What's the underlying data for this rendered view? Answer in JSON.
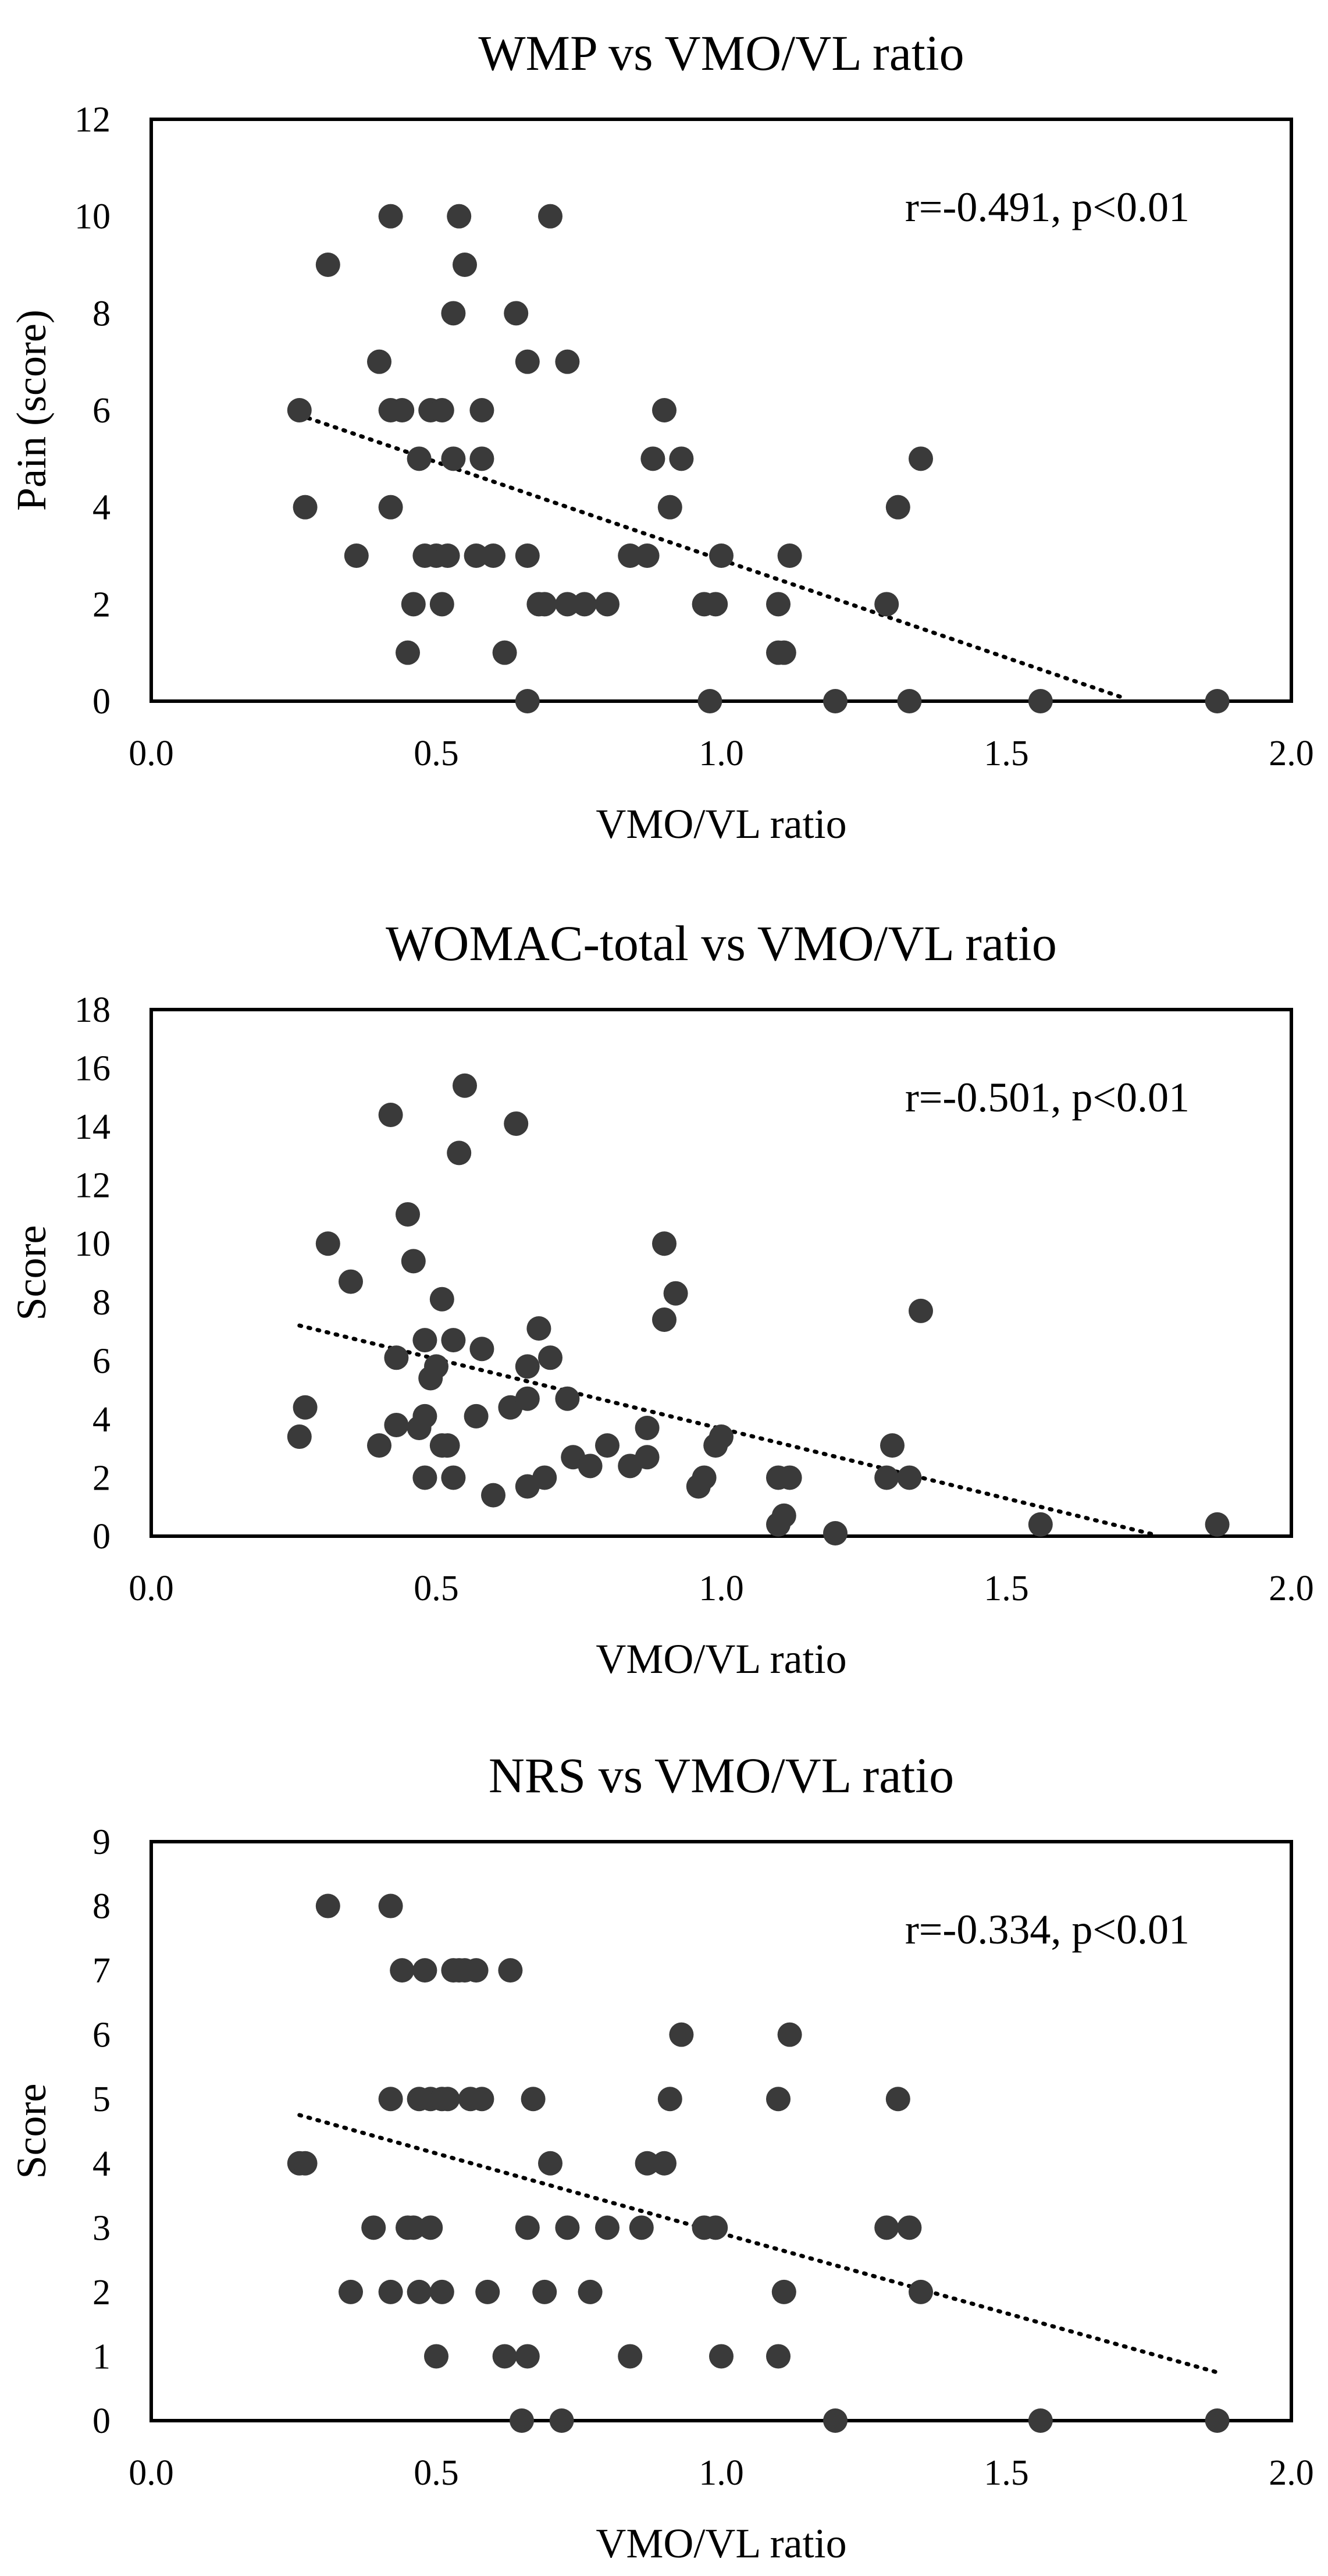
{
  "chart_data": [
    {
      "type": "scatter",
      "title": "WMP vs VMO/VL ratio",
      "xlabel": "VMO/VL ratio",
      "ylabel": "Pain (score)",
      "xlim": [
        0,
        2
      ],
      "ylim": [
        0,
        12
      ],
      "xticks": [
        "0.0",
        "0.5",
        "1.0",
        "1.5",
        "2.0"
      ],
      "yticks": [
        "0",
        "2",
        "4",
        "6",
        "8",
        "10",
        "12"
      ],
      "annotation": "r=-0.491, p<0.01",
      "trendline": {
        "x": [
          0.26,
          1.71
        ],
        "y": [
          5.9,
          0.05
        ]
      },
      "points": [
        [
          0.26,
          6
        ],
        [
          0.27,
          4
        ],
        [
          0.31,
          9
        ],
        [
          0.36,
          3
        ],
        [
          0.4,
          7
        ],
        [
          0.42,
          10
        ],
        [
          0.42,
          6
        ],
        [
          0.42,
          4
        ],
        [
          0.44,
          6
        ],
        [
          0.45,
          1
        ],
        [
          0.46,
          2
        ],
        [
          0.47,
          5
        ],
        [
          0.48,
          3
        ],
        [
          0.49,
          6
        ],
        [
          0.5,
          3
        ],
        [
          0.51,
          6
        ],
        [
          0.51,
          2
        ],
        [
          0.52,
          3
        ],
        [
          0.53,
          5
        ],
        [
          0.53,
          8
        ],
        [
          0.54,
          10
        ],
        [
          0.55,
          9
        ],
        [
          0.57,
          3
        ],
        [
          0.58,
          5
        ],
        [
          0.58,
          6
        ],
        [
          0.6,
          3
        ],
        [
          0.62,
          1
        ],
        [
          0.64,
          8
        ],
        [
          0.66,
          3
        ],
        [
          0.66,
          0
        ],
        [
          0.66,
          7
        ],
        [
          0.68,
          2
        ],
        [
          0.69,
          2
        ],
        [
          0.7,
          10
        ],
        [
          0.73,
          7
        ],
        [
          0.73,
          2
        ],
        [
          0.76,
          2
        ],
        [
          0.8,
          2
        ],
        [
          0.84,
          3
        ],
        [
          0.87,
          3
        ],
        [
          0.88,
          5
        ],
        [
          0.9,
          6
        ],
        [
          0.91,
          4
        ],
        [
          0.93,
          5
        ],
        [
          0.97,
          2
        ],
        [
          0.98,
          0
        ],
        [
          0.99,
          2
        ],
        [
          1.0,
          3
        ],
        [
          1.1,
          1
        ],
        [
          1.1,
          2
        ],
        [
          1.11,
          1
        ],
        [
          1.12,
          3
        ],
        [
          1.2,
          0
        ],
        [
          1.29,
          2
        ],
        [
          1.31,
          4
        ],
        [
          1.33,
          0
        ],
        [
          1.35,
          5
        ],
        [
          1.56,
          0
        ],
        [
          1.87,
          0
        ]
      ]
    },
    {
      "type": "scatter",
      "title": "WOMAC-total vs VMO/VL ratio",
      "xlabel": "VMO/VL ratio",
      "ylabel": "Score",
      "xlim": [
        0,
        2
      ],
      "ylim": [
        0,
        18
      ],
      "xticks": [
        "0.0",
        "0.5",
        "1.0",
        "1.5",
        "2.0"
      ],
      "yticks": [
        "0",
        "2",
        "4",
        "6",
        "8",
        "10",
        "12",
        "14",
        "16",
        "18"
      ],
      "annotation": "r=-0.501, p<0.01",
      "trendline": {
        "x": [
          0.26,
          1.76
        ],
        "y": [
          7.2,
          0.05
        ]
      },
      "points": [
        [
          0.26,
          3.4
        ],
        [
          0.27,
          4.4
        ],
        [
          0.31,
          10.0
        ],
        [
          0.35,
          8.7
        ],
        [
          0.4,
          3.1
        ],
        [
          0.42,
          14.4
        ],
        [
          0.43,
          6.1
        ],
        [
          0.43,
          3.8
        ],
        [
          0.45,
          11.0
        ],
        [
          0.46,
          9.4
        ],
        [
          0.47,
          3.7
        ],
        [
          0.48,
          4.1
        ],
        [
          0.48,
          6.7
        ],
        [
          0.48,
          2.0
        ],
        [
          0.49,
          5.4
        ],
        [
          0.5,
          5.8
        ],
        [
          0.51,
          8.1
        ],
        [
          0.51,
          3.1
        ],
        [
          0.52,
          3.1
        ],
        [
          0.53,
          2.0
        ],
        [
          0.53,
          6.7
        ],
        [
          0.54,
          13.1
        ],
        [
          0.55,
          15.4
        ],
        [
          0.57,
          4.1
        ],
        [
          0.58,
          6.4
        ],
        [
          0.6,
          1.4
        ],
        [
          0.63,
          4.4
        ],
        [
          0.64,
          14.1
        ],
        [
          0.66,
          1.7
        ],
        [
          0.66,
          4.7
        ],
        [
          0.66,
          5.8
        ],
        [
          0.68,
          7.1
        ],
        [
          0.69,
          2.0
        ],
        [
          0.7,
          6.1
        ],
        [
          0.73,
          4.7
        ],
        [
          0.74,
          2.7
        ],
        [
          0.77,
          2.4
        ],
        [
          0.8,
          3.1
        ],
        [
          0.84,
          2.4
        ],
        [
          0.87,
          3.7
        ],
        [
          0.87,
          2.7
        ],
        [
          0.9,
          7.4
        ],
        [
          0.9,
          10.0
        ],
        [
          0.92,
          8.3
        ],
        [
          0.96,
          1.7
        ],
        [
          0.97,
          2.0
        ],
        [
          0.99,
          3.1
        ],
        [
          1.0,
          3.4
        ],
        [
          1.1,
          0.4
        ],
        [
          1.1,
          2.0
        ],
        [
          1.11,
          0.7
        ],
        [
          1.12,
          2.0
        ],
        [
          1.2,
          0.1
        ],
        [
          1.29,
          2.0
        ],
        [
          1.3,
          3.1
        ],
        [
          1.33,
          2.0
        ],
        [
          1.35,
          7.7
        ],
        [
          1.56,
          0.4
        ],
        [
          1.87,
          0.4
        ]
      ]
    },
    {
      "type": "scatter",
      "title": "NRS vs VMO/VL ratio",
      "xlabel": "VMO/VL ratio",
      "ylabel": "Score",
      "xlim": [
        0,
        2
      ],
      "ylim": [
        0,
        9
      ],
      "xticks": [
        "0.0",
        "0.5",
        "1.0",
        "1.5",
        "2.0"
      ],
      "yticks": [
        "0",
        "1",
        "2",
        "3",
        "4",
        "5",
        "6",
        "7",
        "8",
        "9"
      ],
      "annotation": "r=-0.334, p<0.01",
      "trendline": {
        "x": [
          0.26,
          1.87
        ],
        "y": [
          4.75,
          0.75
        ]
      },
      "points": [
        [
          0.26,
          4
        ],
        [
          0.27,
          4
        ],
        [
          0.31,
          8
        ],
        [
          0.35,
          2
        ],
        [
          0.39,
          3
        ],
        [
          0.42,
          8
        ],
        [
          0.42,
          5
        ],
        [
          0.42,
          2
        ],
        [
          0.44,
          7
        ],
        [
          0.45,
          3
        ],
        [
          0.46,
          3
        ],
        [
          0.47,
          5
        ],
        [
          0.47,
          2
        ],
        [
          0.48,
          7
        ],
        [
          0.49,
          5
        ],
        [
          0.49,
          3
        ],
        [
          0.5,
          1
        ],
        [
          0.51,
          5
        ],
        [
          0.51,
          2
        ],
        [
          0.52,
          5
        ],
        [
          0.53,
          7
        ],
        [
          0.54,
          7
        ],
        [
          0.55,
          7
        ],
        [
          0.56,
          5
        ],
        [
          0.57,
          7
        ],
        [
          0.58,
          5
        ],
        [
          0.59,
          2
        ],
        [
          0.62,
          1
        ],
        [
          0.63,
          7
        ],
        [
          0.65,
          0
        ],
        [
          0.66,
          1
        ],
        [
          0.66,
          3
        ],
        [
          0.67,
          5
        ],
        [
          0.69,
          2
        ],
        [
          0.7,
          4
        ],
        [
          0.72,
          0
        ],
        [
          0.73,
          3
        ],
        [
          0.77,
          2
        ],
        [
          0.8,
          3
        ],
        [
          0.84,
          1
        ],
        [
          0.86,
          3
        ],
        [
          0.87,
          4
        ],
        [
          0.9,
          4
        ],
        [
          0.91,
          5
        ],
        [
          0.93,
          6
        ],
        [
          0.97,
          3
        ],
        [
          0.99,
          3
        ],
        [
          1.0,
          1
        ],
        [
          1.1,
          1
        ],
        [
          1.1,
          5
        ],
        [
          1.11,
          2
        ],
        [
          1.12,
          6
        ],
        [
          1.2,
          0
        ],
        [
          1.29,
          3
        ],
        [
          1.31,
          5
        ],
        [
          1.33,
          3
        ],
        [
          1.35,
          2
        ],
        [
          1.56,
          0
        ],
        [
          1.87,
          0
        ]
      ]
    }
  ]
}
